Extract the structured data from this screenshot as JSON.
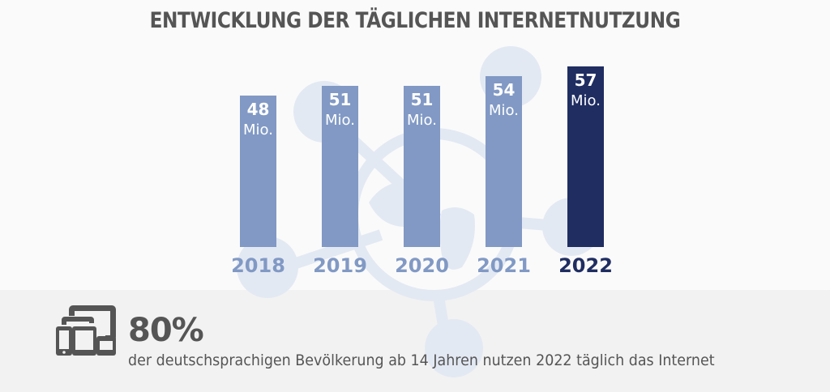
{
  "title": "ENTWICKLUNG DER TÄGLICHEN INTERNETNUTZUNG",
  "colors": {
    "bar_default": "#8199c4",
    "bar_highlight": "#1f2d61",
    "year_default": "#8199c4",
    "year_highlight": "#1f2d61",
    "text": "#555555",
    "background_graphic": "#e3e9f3"
  },
  "chart_data": {
    "type": "bar",
    "title": "ENTWICKLUNG DER TÄGLICHEN INTERNETNUTZUNG",
    "categories": [
      "2018",
      "2019",
      "2020",
      "2021",
      "2022"
    ],
    "values": [
      48,
      51,
      51,
      54,
      57
    ],
    "unit": "Mio.",
    "value_labels": [
      "48",
      "51",
      "51",
      "54",
      "57"
    ],
    "highlight_index": 4,
    "xlabel": "",
    "ylabel": "",
    "grid": false,
    "axes_visible": false
  },
  "summary": {
    "icon": "devices-icon",
    "stat": "80%",
    "caption": "der deutschsprachigen Bevölkerung ab 14 Jahren nutzen 2022 täglich das Internet"
  }
}
